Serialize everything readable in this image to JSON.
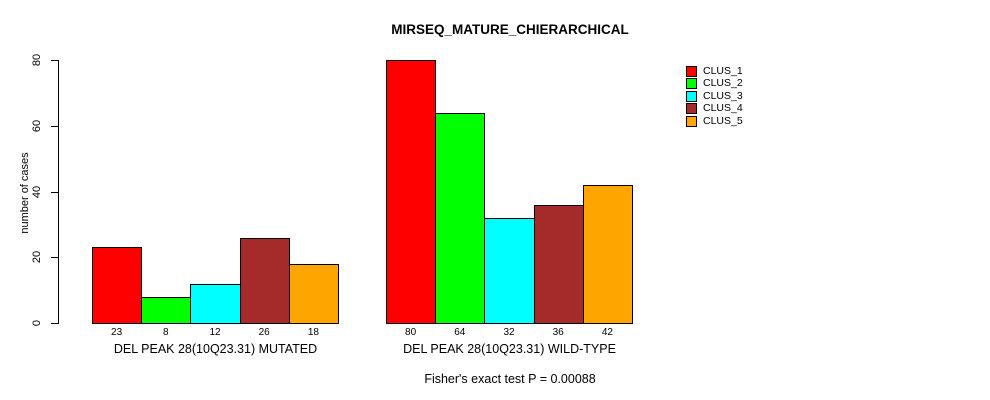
{
  "chart_data": {
    "type": "bar",
    "title": "MIRSEQ_MATURE_CHIERARCHICAL",
    "xlabel": "",
    "ylabel": "number of cases",
    "ylim": [
      0,
      80
    ],
    "yticks": [
      0,
      20,
      40,
      60,
      80
    ],
    "grid": false,
    "legend_position": "top-right",
    "categories": [
      "DEL PEAK 28(10Q23.31) MUTATED",
      "DEL PEAK 28(10Q23.31) WILD-TYPE"
    ],
    "series": [
      {
        "name": "CLUS_1",
        "color": "#FF0000",
        "values": [
          23,
          80
        ]
      },
      {
        "name": "CLUS_2",
        "color": "#00FF00",
        "values": [
          8,
          64
        ]
      },
      {
        "name": "CLUS_3",
        "color": "#00FFFF",
        "values": [
          12,
          32
        ]
      },
      {
        "name": "CLUS_4",
        "color": "#A52A2A",
        "values": [
          26,
          36
        ]
      },
      {
        "name": "CLUS_5",
        "color": "#FFA500",
        "values": [
          18,
          42
        ]
      }
    ],
    "show_bar_values": true,
    "annotation": "Fisher's exact test P = 0.00088",
    "axis_color": "#000000",
    "background_color": "#FFFFFF"
  }
}
